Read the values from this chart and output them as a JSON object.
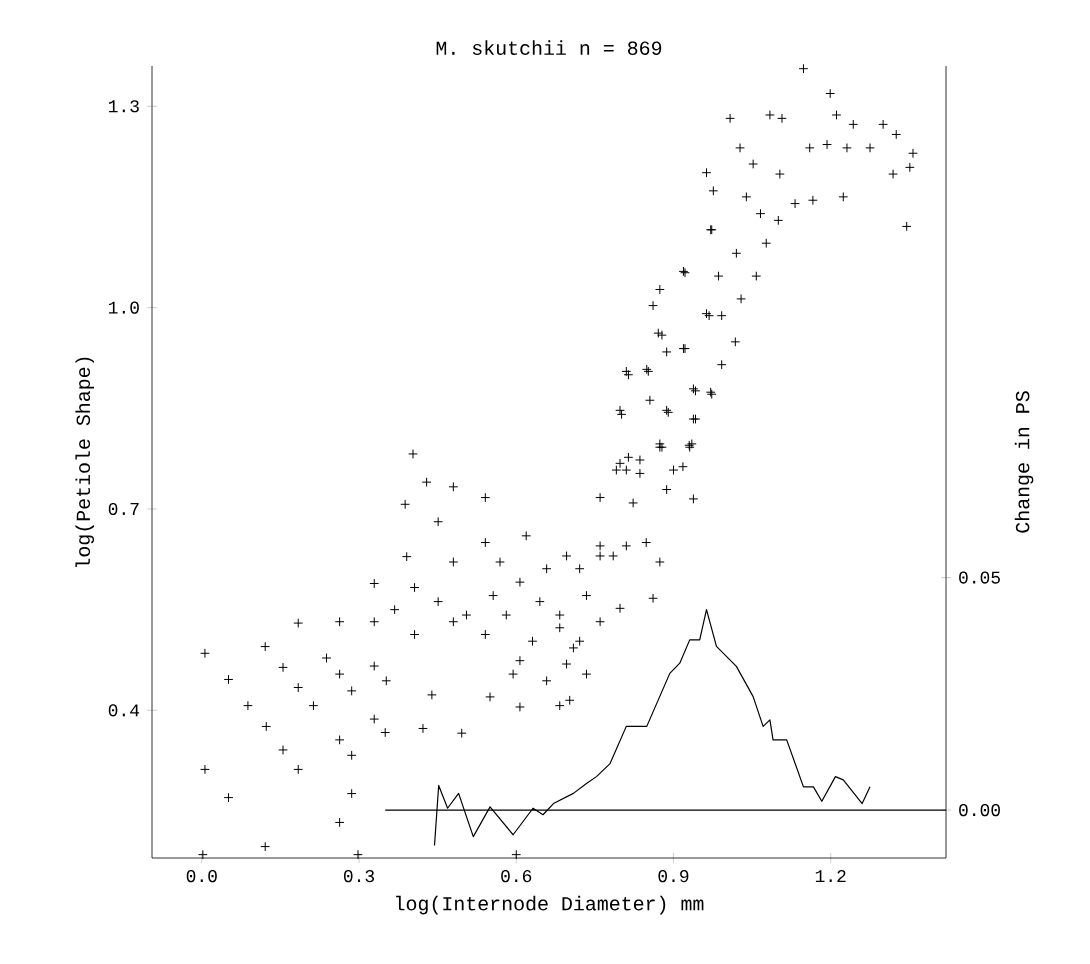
{
  "chart_data": {
    "type": "scatter",
    "title": "M. skutchii  n = 869",
    "xlabel": "log(Internode Diameter) mm",
    "ylabel": "log(Petiole Shape)",
    "y2label": "Change in PS",
    "xlim": [
      -0.095,
      1.42
    ],
    "ylim": [
      0.18,
      1.36
    ],
    "y2lim": [
      -0.0103,
      0.16
    ],
    "xticks": [
      {
        "value": 0,
        "label": "0.0"
      },
      {
        "value": 0.3,
        "label": "0.3"
      },
      {
        "value": 0.6,
        "label": "0.6"
      },
      {
        "value": 0.9,
        "label": "0.9"
      },
      {
        "value": 1.2,
        "label": "1.2"
      }
    ],
    "yticks": [
      {
        "value": 0.4,
        "label": "0.4"
      },
      {
        "value": 0.7,
        "label": "0.7"
      },
      {
        "value": 1.0,
        "label": "1.0"
      },
      {
        "value": 1.3,
        "label": "1.3"
      }
    ],
    "y2ticks": [
      {
        "value": 0,
        "label": "0.00"
      },
      {
        "value": 0.05,
        "label": "0.05"
      }
    ],
    "series": [
      {
        "marker": "cross",
        "color": "#000000",
        "x": [
          0.006,
          0.051,
          0.088,
          0.121,
          0.155,
          0.184,
          0.184,
          0.213,
          0.238,
          0.263,
          0.263,
          0.286,
          0.329,
          0.329,
          0.329,
          0.352,
          0.368,
          0.123,
          0.155,
          0.184,
          0.006,
          0.051,
          0.121,
          0.263,
          0.286,
          0.286,
          0.263,
          0.329,
          0.35,
          0.422,
          0.439,
          0.496,
          0.403,
          0.429,
          0.48,
          0.388,
          0.451,
          0.541,
          0.391,
          0.406,
          0.406,
          0.451,
          0.48,
          0.48,
          0.541,
          0.505,
          0.541,
          0.581,
          0.619,
          0.607,
          0.55,
          0.607,
          0.683,
          0.658,
          0.683,
          0.658,
          0.734,
          0.734,
          0.791,
          0.76,
          0.785,
          0.002,
          0.298,
          0.6,
          0.569,
          0.607,
          0.645,
          0.683,
          0.721,
          0.556,
          0.631,
          0.709,
          0.594,
          0.76,
          0.696,
          0.76,
          0.81,
          0.848,
          0.874,
          0.861,
          0.798,
          0.76,
          0.721,
          0.696,
          0.702,
          0.823,
          0.887,
          0.931,
          0.874,
          0.938,
          0.836,
          0.81,
          0.963,
          0.976,
          0.971,
          0.963,
          0.919,
          0.861,
          0.874,
          0.871,
          0.887,
          0.919,
          0.81,
          0.849,
          0.938,
          0.971,
          0.798,
          0.855,
          0.887,
          0.938,
          0.874,
          0.93,
          0.798,
          0.836,
          0.9,
          1.148,
          1.199,
          1.211,
          1.243,
          1.3,
          1.325,
          1.357,
          1.351,
          1.345,
          1.319,
          1.275,
          1.231,
          1.193,
          1.16,
          1.166,
          1.224,
          1.008,
          1.084,
          1.107,
          1.027,
          1.052,
          1.103,
          1.039,
          1.132,
          1.1,
          1.066,
          1.077,
          0.973,
          1.02,
          1.058,
          1.029,
          0.986,
          0.922,
          0.968,
          0.992,
          1.018,
          0.922,
          0.878,
          0.992,
          0.814,
          0.852,
          0.942,
          0.973,
          0.801,
          0.89,
          0.942,
          0.878,
          0.935,
          0.814,
          0.918
        ],
        "values": [
          0.485,
          0.446,
          0.407,
          0.495,
          0.464,
          0.53,
          0.434,
          0.407,
          0.478,
          0.532,
          0.454,
          0.429,
          0.589,
          0.532,
          0.466,
          0.444,
          0.55,
          0.376,
          0.341,
          0.312,
          0.312,
          0.27,
          0.197,
          0.356,
          0.333,
          0.276,
          0.233,
          0.387,
          0.367,
          0.373,
          0.423,
          0.366,
          0.782,
          0.74,
          0.733,
          0.707,
          0.681,
          0.717,
          0.629,
          0.583,
          0.513,
          0.562,
          0.621,
          0.532,
          0.65,
          0.542,
          0.513,
          0.542,
          0.66,
          0.474,
          0.42,
          0.405,
          0.407,
          0.611,
          0.542,
          0.444,
          0.571,
          0.454,
          0.758,
          0.717,
          0.63,
          0.185,
          0.185,
          0.185,
          0.621,
          0.591,
          0.562,
          0.523,
          0.611,
          0.571,
          0.503,
          0.493,
          0.454,
          0.63,
          0.63,
          0.645,
          0.645,
          0.65,
          0.621,
          0.567,
          0.552,
          0.532,
          0.503,
          0.469,
          0.415,
          0.709,
          0.729,
          0.792,
          0.797,
          0.715,
          0.773,
          0.758,
          1.201,
          1.174,
          1.116,
          0.991,
          1.054,
          1.003,
          1.027,
          0.962,
          0.934,
          0.939,
          0.905,
          0.908,
          0.879,
          0.874,
          0.847,
          0.862,
          0.847,
          0.834,
          0.792,
          0.795,
          0.768,
          0.753,
          0.758,
          1.356,
          1.319,
          1.287,
          1.273,
          1.273,
          1.258,
          1.23,
          1.209,
          1.121,
          1.199,
          1.238,
          1.238,
          1.243,
          1.238,
          1.16,
          1.165,
          1.282,
          1.287,
          1.282,
          1.238,
          1.214,
          1.199,
          1.165,
          1.155,
          1.13,
          1.14,
          1.096,
          1.116,
          1.081,
          1.047,
          1.013,
          1.047,
          1.052,
          0.988,
          0.988,
          0.949,
          0.939,
          0.959,
          0.915,
          0.9,
          0.905,
          0.876,
          0.871,
          0.841,
          0.844,
          0.834,
          0.792,
          0.797,
          0.777,
          0.763
        ]
      },
      {
        "type": "line",
        "marker": "none",
        "axis": "y2",
        "color": "#000000",
        "x": [
          0.444,
          0.452,
          0.469,
          0.49,
          0.518,
          0.55,
          0.594,
          0.632,
          0.651,
          0.671,
          0.709,
          0.734,
          0.753,
          0.779,
          0.81,
          0.849,
          0.893,
          0.912,
          0.931,
          0.95,
          0.963,
          0.982,
          1.02,
          1.052,
          1.071,
          1.084,
          1.09,
          1.116,
          1.148,
          1.167,
          1.183,
          1.209,
          1.224,
          1.26,
          1.275
        ],
        "values": [
          -0.0076,
          0.0053,
          0.0004,
          0.0036,
          -0.0057,
          0.0007,
          -0.0053,
          0.0004,
          -0.001,
          0.0014,
          0.0036,
          0.0057,
          0.0072,
          0.01,
          0.018,
          0.018,
          0.0294,
          0.0316,
          0.0366,
          0.0366,
          0.0431,
          0.0352,
          0.0309,
          0.0244,
          0.018,
          0.0194,
          0.0151,
          0.0151,
          0.005,
          0.005,
          0.0019,
          0.0072,
          0.0065,
          0.0014,
          0.005
        ]
      },
      {
        "type": "line",
        "marker": "none",
        "axis": "y2",
        "color": "#000000",
        "x": [
          0.35,
          1.42
        ],
        "values": [
          0,
          0
        ]
      }
    ]
  }
}
